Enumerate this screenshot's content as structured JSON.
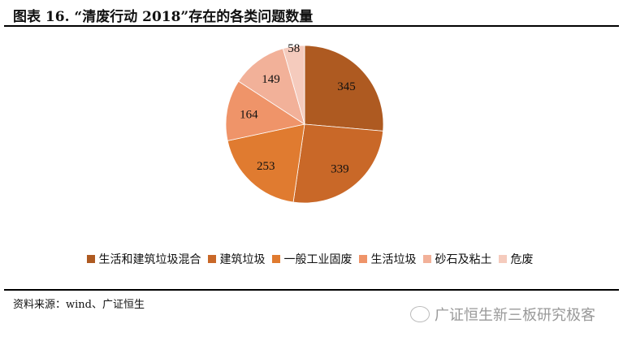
{
  "title": "图表 16. “清废行动 2018”存在的各类问题数量",
  "source": "资料来源：wind、广证恒生",
  "watermark": "广证恒生新三板研究极客",
  "chart_data": {
    "type": "pie",
    "title": "图表 16. “清废行动 2018”存在的各类问题数量",
    "categories": [
      "生活和建筑垃圾混合",
      "建筑垃圾",
      "一般工业固废",
      "生活垃圾",
      "砂石及粘土",
      "危废"
    ],
    "values": [
      345,
      339,
      253,
      164,
      149,
      58
    ],
    "colors": [
      "#AE5A21",
      "#C96828",
      "#E07B30",
      "#EF9469",
      "#F2B199",
      "#F5CBBD"
    ],
    "start": "12 o'clock, clockwise",
    "legend_position": "bottom",
    "data_labels": true
  }
}
